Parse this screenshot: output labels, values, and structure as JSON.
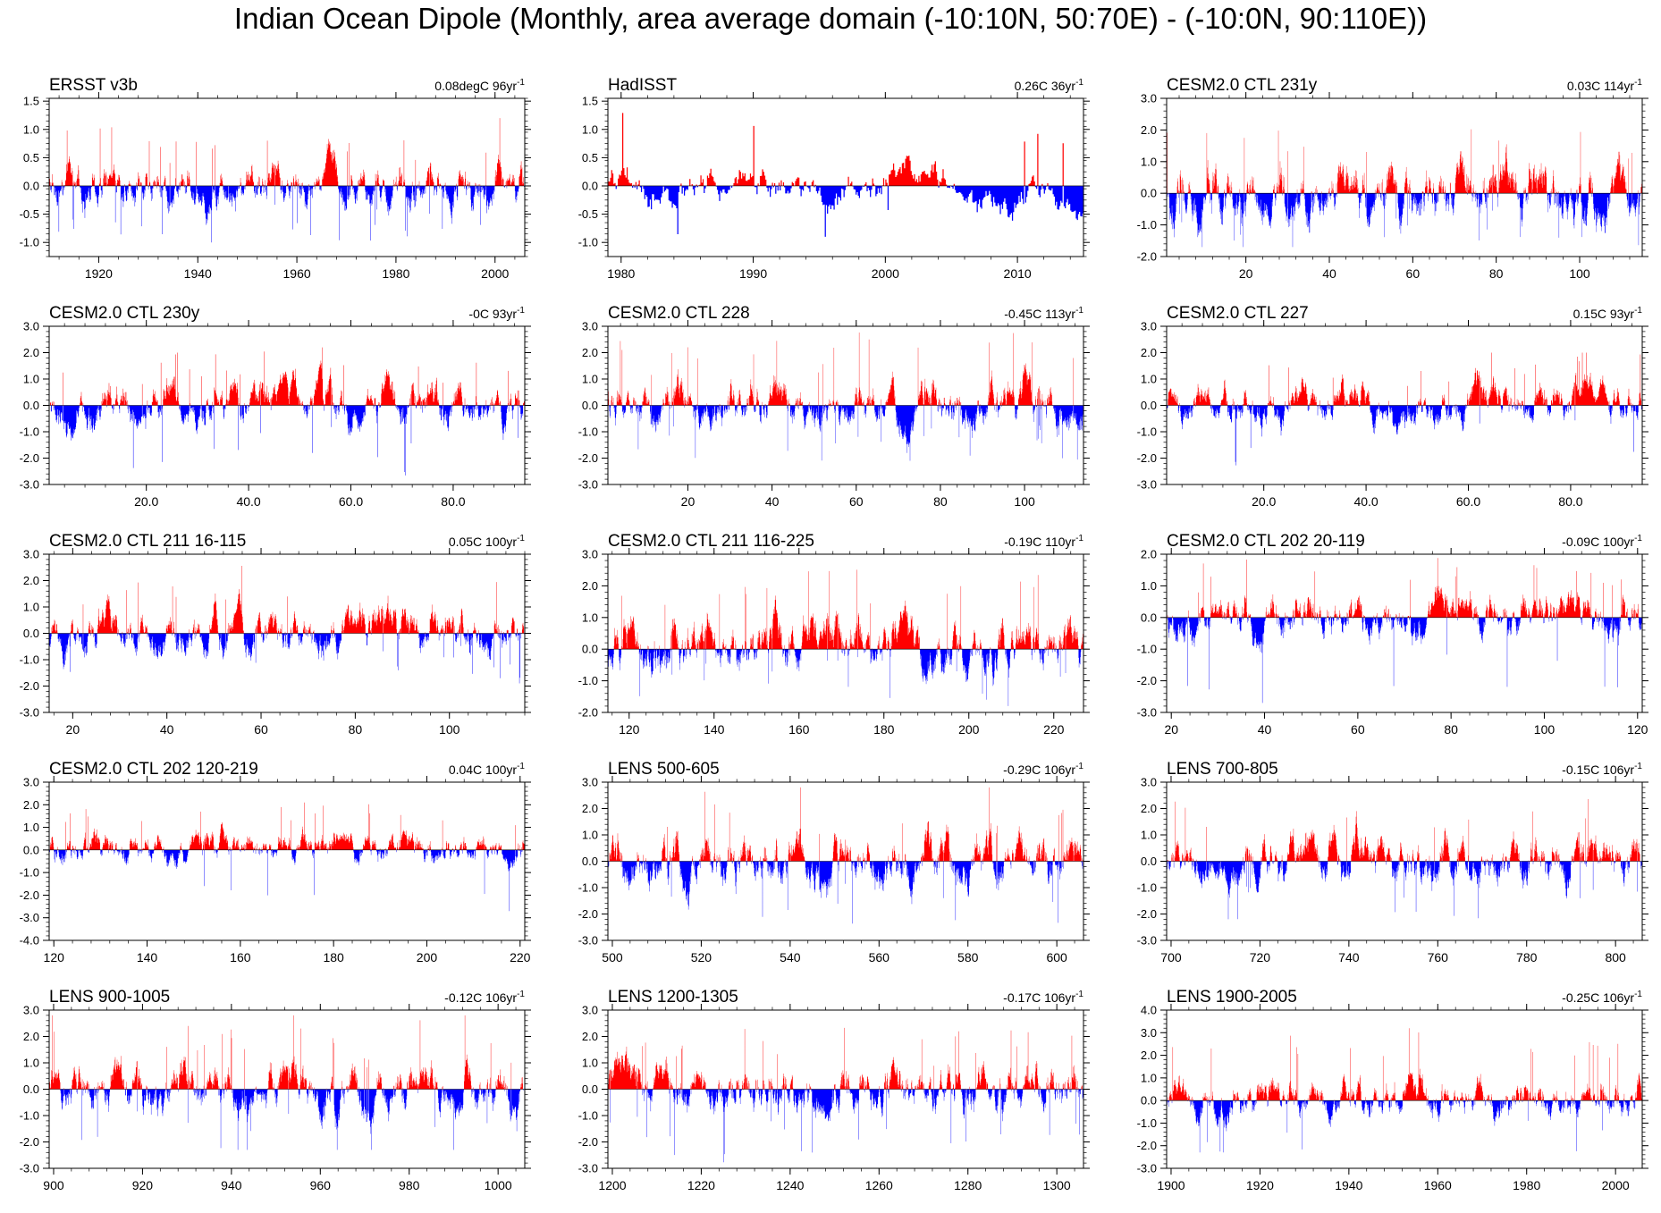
{
  "title": "Indian Ocean Dipole (Monthly, area average domain (-10:10N, 50:70E) - (-10:0N, 90:110E))",
  "colors": {
    "positive": "#ff0000",
    "negative": "#0000ff",
    "zero_line": "#000000",
    "frame": "#000000"
  },
  "chart_data": [
    {
      "type": "bar",
      "title": "ERSST v3b",
      "trend": "0.08degC 96yr",
      "trend_sup": "-1",
      "xlim": [
        1910,
        2006
      ],
      "xticks": [
        1920,
        1940,
        1960,
        1980,
        2000
      ],
      "xtick_labels": [
        "1920",
        "1940",
        "1960",
        "1980",
        "2000"
      ],
      "ylim": [
        -1.25,
        1.55
      ],
      "yticks": [
        -1.0,
        -0.5,
        0.0,
        0.5,
        1.0,
        1.5
      ],
      "ytick_labels": [
        "-1.0",
        "-0.5",
        "0.0",
        "0.5",
        "1.0",
        "1.5"
      ],
      "amp": 0.55,
      "peak": 1.2,
      "trough": -1.0
    },
    {
      "type": "bar",
      "title": "HadISST",
      "trend": "0.26C 36yr",
      "trend_sup": "-1",
      "xlim": [
        1979,
        2015
      ],
      "xticks": [
        1980,
        1990,
        2000,
        2010
      ],
      "xtick_labels": [
        "1980",
        "1990",
        "2000",
        "2010"
      ],
      "ylim": [
        -1.25,
        1.55
      ],
      "yticks": [
        -1.0,
        -0.5,
        0.0,
        0.5,
        1.0,
        1.5
      ],
      "ytick_labels": [
        "-1.0",
        "-0.5",
        "0.0",
        "0.5",
        "1.0",
        "1.5"
      ],
      "amp": 0.5,
      "peak": 1.4,
      "trough": -0.9
    },
    {
      "type": "bar",
      "title": "CESM2.0 CTL 231y",
      "trend": "0.03C 114yr",
      "trend_sup": "-1",
      "xlim": [
        1,
        115
      ],
      "xticks": [
        20,
        40,
        60,
        80,
        100
      ],
      "xtick_labels": [
        "20",
        "40",
        "60",
        "80",
        "100"
      ],
      "ylim": [
        -2.0,
        3.0
      ],
      "yticks": [
        -2.0,
        -1.0,
        0.0,
        1.0,
        2.0,
        3.0
      ],
      "ytick_labels": [
        "-2.0",
        "-1.0",
        "0.0",
        "1.0",
        "2.0",
        "3.0"
      ],
      "amp": 1.2,
      "peak": 2.6,
      "trough": -1.7
    },
    {
      "type": "bar",
      "title": "CESM2.0 CTL 230y",
      "trend": "-0C 93yr",
      "trend_sup": "-1",
      "xlim": [
        1,
        94
      ],
      "xticks": [
        20,
        40,
        60,
        80
      ],
      "xtick_labels": [
        "20.0",
        "40.0",
        "60.0",
        "80.0"
      ],
      "ylim": [
        -3.0,
        3.0
      ],
      "yticks": [
        -3.0,
        -2.0,
        -1.0,
        0.0,
        1.0,
        2.0,
        3.0
      ],
      "ytick_labels": [
        "-3.0",
        "-2.0",
        "-1.0",
        "0.0",
        "1.0",
        "2.0",
        "3.0"
      ],
      "amp": 1.1,
      "peak": 2.2,
      "trough": -2.7
    },
    {
      "type": "bar",
      "title": "CESM2.0 CTL 228",
      "trend": "-0.45C 113yr",
      "trend_sup": "-1",
      "xlim": [
        1,
        114
      ],
      "xticks": [
        20,
        40,
        60,
        80,
        100
      ],
      "xtick_labels": [
        "20",
        "40",
        "60",
        "80",
        "100"
      ],
      "ylim": [
        -3.0,
        3.0
      ],
      "yticks": [
        -3.0,
        -2.0,
        -1.0,
        0.0,
        1.0,
        2.0,
        3.0
      ],
      "ytick_labels": [
        "-3.0",
        "-2.0",
        "-1.0",
        "0.0",
        "1.0",
        "2.0",
        "3.0"
      ],
      "amp": 1.1,
      "peak": 2.9,
      "trough": -2.1
    },
    {
      "type": "bar",
      "title": "CESM2.0 CTL 227",
      "trend": "0.15C 93yr",
      "trend_sup": "-1",
      "xlim": [
        1,
        94
      ],
      "xticks": [
        20,
        40,
        60,
        80
      ],
      "xtick_labels": [
        "20.0",
        "40.0",
        "60.0",
        "80.0"
      ],
      "ylim": [
        -3.0,
        3.0
      ],
      "yticks": [
        -3.0,
        -2.0,
        -1.0,
        0.0,
        1.0,
        2.0,
        3.0
      ],
      "ytick_labels": [
        "-3.0",
        "-2.0",
        "-1.0",
        "0.0",
        "1.0",
        "2.0",
        "3.0"
      ],
      "amp": 1.0,
      "peak": 2.0,
      "trough": -2.3
    },
    {
      "type": "bar",
      "title": "CESM2.0 CTL 211 16-115",
      "trend": "0.05C 100yr",
      "trend_sup": "-1",
      "xlim": [
        15,
        116
      ],
      "xticks": [
        20,
        40,
        60,
        80,
        100
      ],
      "xtick_labels": [
        "20",
        "40",
        "60",
        "80",
        "100"
      ],
      "ylim": [
        -3.0,
        3.0
      ],
      "yticks": [
        -3.0,
        -2.0,
        -1.0,
        0.0,
        1.0,
        2.0,
        3.0
      ],
      "ytick_labels": [
        "-3.0",
        "-2.0",
        "-1.0",
        "0.0",
        "1.0",
        "2.0",
        "3.0"
      ],
      "amp": 1.1,
      "peak": 2.7,
      "trough": -2.0
    },
    {
      "type": "bar",
      "title": "CESM2.0 CTL 211 116-225",
      "trend": "-0.19C 110yr",
      "trend_sup": "-1",
      "xlim": [
        115,
        227
      ],
      "xticks": [
        120,
        140,
        160,
        180,
        200,
        220
      ],
      "xtick_labels": [
        "120",
        "140",
        "160",
        "180",
        "200",
        "220"
      ],
      "ylim": [
        -2.0,
        3.0
      ],
      "yticks": [
        -2.0,
        -1.0,
        0.0,
        1.0,
        2.0,
        3.0
      ],
      "ytick_labels": [
        "-2.0",
        "-1.0",
        "0.0",
        "1.0",
        "2.0",
        "3.0"
      ],
      "amp": 1.1,
      "peak": 2.6,
      "trough": -1.8
    },
    {
      "type": "bar",
      "title": "CESM2.0 CTL 202 20-119",
      "trend": "-0.09C 100yr",
      "trend_sup": "-1",
      "xlim": [
        19,
        121
      ],
      "xticks": [
        20,
        40,
        60,
        80,
        100,
        120
      ],
      "xtick_labels": [
        "20",
        "40",
        "60",
        "80",
        "100",
        "120"
      ],
      "ylim": [
        -3.0,
        2.0
      ],
      "yticks": [
        -3.0,
        -2.0,
        -1.0,
        0.0,
        1.0,
        2.0
      ],
      "ytick_labels": [
        "-3.0",
        "-2.0",
        "-1.0",
        "0.0",
        "1.0",
        "2.0"
      ],
      "amp": 0.9,
      "peak": 1.9,
      "trough": -2.7
    },
    {
      "type": "bar",
      "title": "CESM2.0 CTL 202 120-219",
      "trend": "0.04C 100yr",
      "trend_sup": "-1",
      "xlim": [
        119,
        221
      ],
      "xticks": [
        120,
        140,
        160,
        180,
        200,
        220
      ],
      "xtick_labels": [
        "120",
        "140",
        "160",
        "180",
        "200",
        "220"
      ],
      "ylim": [
        -4.0,
        3.0
      ],
      "yticks": [
        -4.0,
        -3.0,
        -2.0,
        -1.0,
        0.0,
        1.0,
        2.0,
        3.0
      ],
      "ytick_labels": [
        "-4.0",
        "-3.0",
        "-2.0",
        "-1.0",
        "0.0",
        "1.0",
        "2.0",
        "3.0"
      ],
      "amp": 0.9,
      "peak": 2.1,
      "trough": -2.9
    },
    {
      "type": "bar",
      "title": "LENS 500-605",
      "trend": "-0.29C 106yr",
      "trend_sup": "-1",
      "xlim": [
        499,
        606
      ],
      "xticks": [
        500,
        520,
        540,
        560,
        580,
        600
      ],
      "xtick_labels": [
        "500",
        "520",
        "540",
        "560",
        "580",
        "600"
      ],
      "ylim": [
        -3.0,
        3.0
      ],
      "yticks": [
        -3.0,
        -2.0,
        -1.0,
        0.0,
        1.0,
        2.0,
        3.0
      ],
      "ytick_labels": [
        "-3.0",
        "-2.0",
        "-1.0",
        "0.0",
        "1.0",
        "2.0",
        "3.0"
      ],
      "amp": 1.3,
      "peak": 2.8,
      "trough": -2.6
    },
    {
      "type": "bar",
      "title": "LENS 700-805",
      "trend": "-0.15C 106yr",
      "trend_sup": "-1",
      "xlim": [
        699,
        806
      ],
      "xticks": [
        700,
        720,
        740,
        760,
        780,
        800
      ],
      "xtick_labels": [
        "700",
        "720",
        "740",
        "760",
        "780",
        "800"
      ],
      "ylim": [
        -3.0,
        3.0
      ],
      "yticks": [
        -3.0,
        -2.0,
        -1.0,
        0.0,
        1.0,
        2.0,
        3.0
      ],
      "ytick_labels": [
        "-3.0",
        "-2.0",
        "-1.0",
        "0.0",
        "1.0",
        "2.0",
        "3.0"
      ],
      "amp": 1.2,
      "peak": 2.7,
      "trough": -2.2
    },
    {
      "type": "bar",
      "title": "LENS 900-1005",
      "trend": "-0.12C 106yr",
      "trend_sup": "-1",
      "xlim": [
        899,
        1006
      ],
      "xticks": [
        900,
        920,
        940,
        960,
        980,
        1000
      ],
      "xtick_labels": [
        "900",
        "920",
        "940",
        "960",
        "980",
        "1000"
      ],
      "ylim": [
        -3.0,
        3.0
      ],
      "yticks": [
        -3.0,
        -2.0,
        -1.0,
        0.0,
        1.0,
        2.0,
        3.0
      ],
      "ytick_labels": [
        "-3.0",
        "-2.0",
        "-1.0",
        "0.0",
        "1.0",
        "2.0",
        "3.0"
      ],
      "amp": 1.2,
      "peak": 2.8,
      "trough": -2.3
    },
    {
      "type": "bar",
      "title": "LENS 1200-1305",
      "trend": "-0.17C 106yr",
      "trend_sup": "-1",
      "xlim": [
        1199,
        1306
      ],
      "xticks": [
        1200,
        1220,
        1240,
        1260,
        1280,
        1300
      ],
      "xtick_labels": [
        "1200",
        "1220",
        "1240",
        "1260",
        "1280",
        "1300"
      ],
      "ylim": [
        -3.0,
        3.0
      ],
      "yticks": [
        -3.0,
        -2.0,
        -1.0,
        0.0,
        1.0,
        2.0,
        3.0
      ],
      "ytick_labels": [
        "-3.0",
        "-2.0",
        "-1.0",
        "0.0",
        "1.0",
        "2.0",
        "3.0"
      ],
      "amp": 1.2,
      "peak": 2.6,
      "trough": -2.8
    },
    {
      "type": "bar",
      "title": "LENS 1900-2005",
      "trend": "-0.25C 106yr",
      "trend_sup": "-1",
      "xlim": [
        1899,
        2006
      ],
      "xticks": [
        1900,
        1920,
        1940,
        1960,
        1980,
        2000
      ],
      "xtick_labels": [
        "1900",
        "1920",
        "1940",
        "1960",
        "1980",
        "2000"
      ],
      "ylim": [
        -3.0,
        4.0
      ],
      "yticks": [
        -3.0,
        -2.0,
        -1.0,
        0.0,
        1.0,
        2.0,
        3.0,
        4.0
      ],
      "ytick_labels": [
        "-3.0",
        "-2.0",
        "-1.0",
        "0.0",
        "1.0",
        "2.0",
        "3.0",
        "4.0"
      ],
      "amp": 1.1,
      "peak": 3.2,
      "trough": -2.3
    }
  ]
}
